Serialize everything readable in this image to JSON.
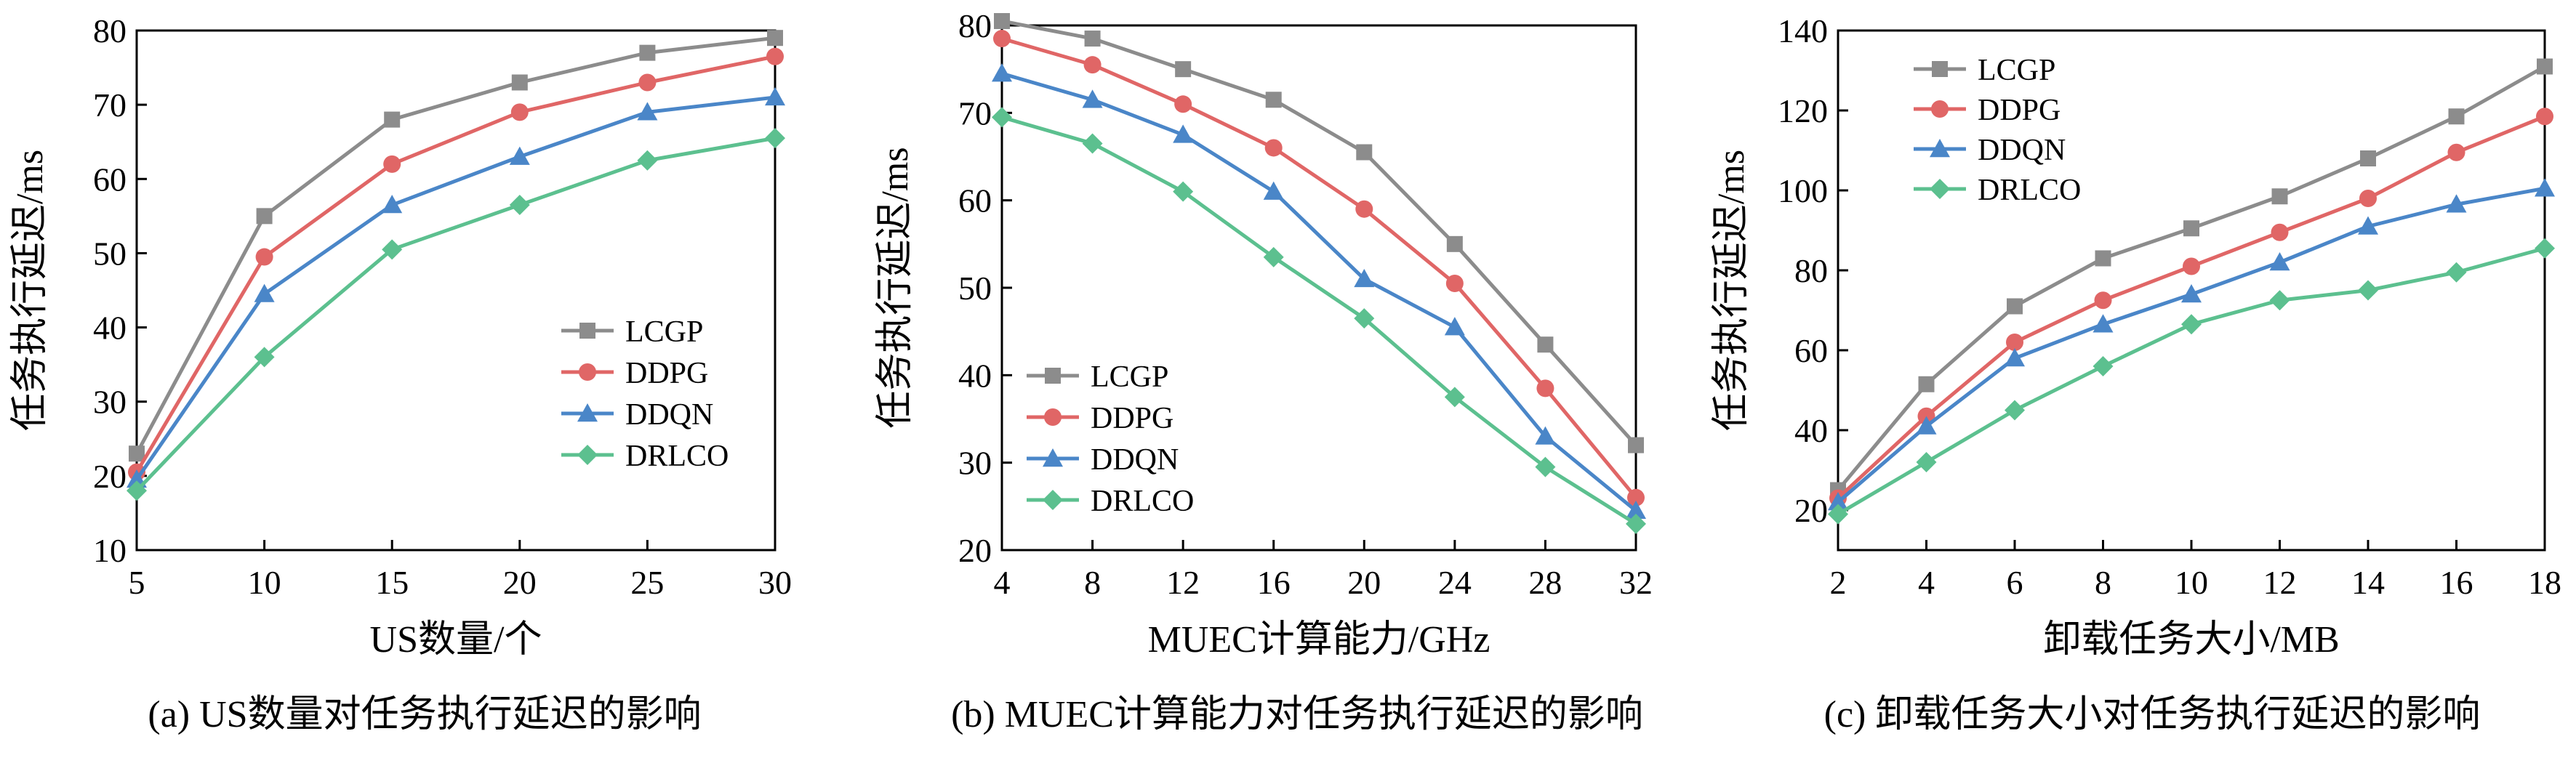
{
  "colors": {
    "LCGP": "#8c8c8c",
    "DDPG": "#e06666",
    "DDQN": "#4a86c8",
    "DRLCO": "#5cc08f"
  },
  "chart_data": [
    {
      "type": "line",
      "caption": "(a) US数量对任务执行延迟的影响",
      "xlabel": "US数量/个",
      "ylabel": "任务执行延迟/ms",
      "x": [
        5,
        10,
        15,
        20,
        25,
        30
      ],
      "xlim": [
        5,
        30
      ],
      "ylim": [
        10,
        80
      ],
      "xticks": [
        5,
        10,
        15,
        20,
        25,
        30
      ],
      "yticks": [
        10,
        20,
        30,
        40,
        50,
        60,
        70,
        80
      ],
      "legend_position": "bottom-right",
      "grid": false,
      "series": [
        {
          "name": "LCGP",
          "marker": "square",
          "values": [
            23.0,
            55.0,
            68.0,
            73.0,
            77.0,
            79.0
          ]
        },
        {
          "name": "DDPG",
          "marker": "circle",
          "values": [
            20.5,
            49.5,
            62.0,
            69.0,
            73.0,
            76.5
          ]
        },
        {
          "name": "DDQN",
          "marker": "triangle",
          "values": [
            19.5,
            44.5,
            56.5,
            63.0,
            69.0,
            71.0
          ]
        },
        {
          "name": "DRLCO",
          "marker": "diamond",
          "values": [
            18.0,
            36.0,
            50.5,
            56.5,
            62.5,
            65.5
          ]
        }
      ]
    },
    {
      "type": "line",
      "caption": "(b) MUEC计算能力对任务执行延迟的影响",
      "xlabel": "MUEC计算能力/GHz",
      "ylabel": "任务执行延迟/ms",
      "x": [
        4,
        8,
        12,
        16,
        20,
        24,
        28,
        32
      ],
      "xlim": [
        4,
        32
      ],
      "ylim": [
        20,
        80
      ],
      "xticks": [
        4,
        8,
        12,
        16,
        20,
        24,
        28,
        32
      ],
      "yticks": [
        20,
        30,
        40,
        50,
        60,
        70,
        80
      ],
      "legend_position": "bottom-left",
      "grid": false,
      "series": [
        {
          "name": "LCGP",
          "marker": "square",
          "values": [
            80.5,
            78.5,
            75.0,
            71.5,
            65.5,
            55.0,
            43.5,
            32.0
          ]
        },
        {
          "name": "DDPG",
          "marker": "circle",
          "values": [
            78.5,
            75.5,
            71.0,
            66.0,
            59.0,
            50.5,
            38.5,
            26.0
          ]
        },
        {
          "name": "DDQN",
          "marker": "triangle",
          "values": [
            74.5,
            71.5,
            67.5,
            61.0,
            51.0,
            45.5,
            33.0,
            24.5
          ]
        },
        {
          "name": "DRLCO",
          "marker": "diamond",
          "values": [
            69.5,
            66.5,
            61.0,
            53.5,
            46.5,
            37.5,
            29.5,
            23.0
          ]
        }
      ]
    },
    {
      "type": "line",
      "caption": "(c) 卸载任务大小对任务执行延迟的影响",
      "xlabel": "卸载任务大小/MB",
      "ylabel": "任务执行延迟/ms",
      "x": [
        2,
        4,
        6,
        8,
        10,
        12,
        14,
        16,
        18
      ],
      "xlim": [
        2,
        18
      ],
      "ylim": [
        10,
        140
      ],
      "xticks": [
        2,
        4,
        6,
        8,
        10,
        12,
        14,
        16,
        18
      ],
      "yticks": [
        20,
        40,
        60,
        80,
        100,
        120,
        140
      ],
      "legend_position": "top-left",
      "grid": false,
      "series": [
        {
          "name": "LCGP",
          "marker": "square",
          "values": [
            25.0,
            51.5,
            71.0,
            83.0,
            90.5,
            98.5,
            108.0,
            118.5,
            131.0
          ]
        },
        {
          "name": "DDPG",
          "marker": "circle",
          "values": [
            23.0,
            43.5,
            62.0,
            72.5,
            81.0,
            89.5,
            98.0,
            109.5,
            118.5
          ]
        },
        {
          "name": "DDQN",
          "marker": "triangle",
          "values": [
            22.0,
            41.0,
            58.0,
            66.5,
            74.0,
            82.0,
            91.0,
            96.5,
            100.5
          ]
        },
        {
          "name": "DRLCO",
          "marker": "diamond",
          "values": [
            19.0,
            32.0,
            45.0,
            56.0,
            66.5,
            72.5,
            75.0,
            79.5,
            85.5
          ]
        }
      ]
    }
  ]
}
